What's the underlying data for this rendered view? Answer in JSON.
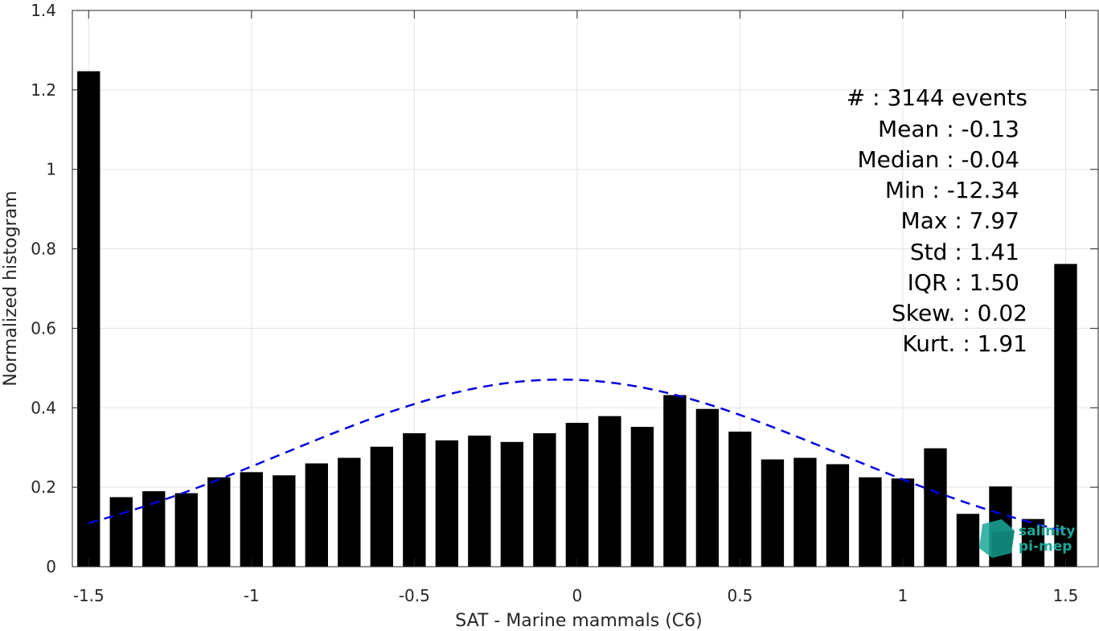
{
  "chart_data": {
    "type": "bar",
    "xlabel": "SAT - Marine mammals (C6)",
    "ylabel": "Normalized histogram",
    "xlim": [
      -1.55,
      1.6
    ],
    "ylim": [
      0,
      1.4
    ],
    "xticks": [
      -1.5,
      -1,
      -0.5,
      0,
      0.5,
      1,
      1.5
    ],
    "xtick_labels": [
      "-1.5",
      "-1",
      "-0.5",
      "0",
      "0.5",
      "1",
      "1.5"
    ],
    "yticks": [
      0,
      0.2,
      0.4,
      0.6,
      0.8,
      1,
      1.2,
      1.4
    ],
    "ytick_labels": [
      "0",
      "0.2",
      "0.4",
      "0.6",
      "0.8",
      "1",
      "1.2",
      "1.4"
    ],
    "grid": true,
    "bars": {
      "x": [
        -1.5,
        -1.4,
        -1.3,
        -1.2,
        -1.1,
        -1.0,
        -0.9,
        -0.8,
        -0.7,
        -0.6,
        -0.5,
        -0.4,
        -0.3,
        -0.2,
        -0.1,
        0.0,
        0.1,
        0.2,
        0.3,
        0.4,
        0.5,
        0.6,
        0.7,
        0.8,
        0.9,
        1.0,
        1.1,
        1.2,
        1.3,
        1.4,
        1.5
      ],
      "values": [
        1.247,
        0.175,
        0.19,
        0.185,
        0.225,
        0.238,
        0.23,
        0.26,
        0.274,
        0.302,
        0.336,
        0.318,
        0.33,
        0.314,
        0.336,
        0.362,
        0.379,
        0.352,
        0.432,
        0.397,
        0.34,
        0.27,
        0.274,
        0.258,
        0.225,
        0.222,
        0.298,
        0.133,
        0.202,
        0.12,
        0.762
      ],
      "color": "#000000"
    },
    "fit_curve": {
      "kind": "normal",
      "mean": -0.05,
      "std": 0.85,
      "peak": 0.471,
      "x_range": [
        -1.5,
        1.5
      ],
      "color": "#0000dd",
      "style": "dashed"
    },
    "stats": [
      {
        "label": "#  : 3144 events"
      },
      {
        "label": "Mean : -0.13"
      },
      {
        "label": "Median : -0.04"
      },
      {
        "label": "Min : -12.34"
      },
      {
        "label": "Max : 7.97"
      },
      {
        "label": "Std : 1.41"
      },
      {
        "label": "IQR : 1.50"
      },
      {
        "label": "Skew. : 0.02"
      },
      {
        "label": "Kurt. : 1.91"
      }
    ]
  },
  "logo": {
    "line1": "salinity",
    "line2": "pi-mep",
    "color": "#1aa899"
  }
}
